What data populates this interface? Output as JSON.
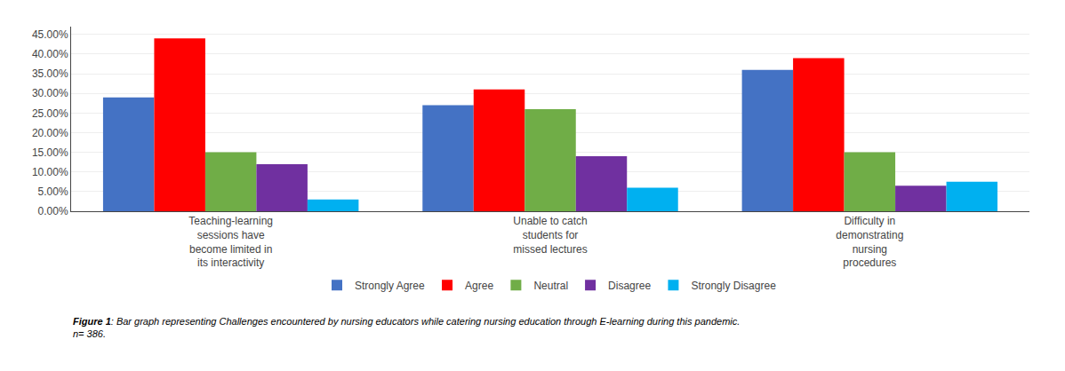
{
  "chart_data": {
    "type": "bar",
    "categories": [
      "Teaching-learning\nsessions have\nbecome limited in\nits interactivity",
      "Unable to catch\nstudents for\nmissed lectures",
      "Difficulty in\ndemonstrating\nnursing\nprocedures"
    ],
    "series": [
      {
        "name": "Strongly Agree",
        "color": "#4472C4",
        "values": [
          29.0,
          27.0,
          36.0
        ]
      },
      {
        "name": "Agree",
        "color": "#FF0000",
        "values": [
          44.0,
          31.0,
          39.0
        ]
      },
      {
        "name": "Neutral",
        "color": "#70AD47",
        "values": [
          15.0,
          26.0,
          15.0
        ]
      },
      {
        "name": "Disagree",
        "color": "#7030A0",
        "values": [
          12.0,
          14.0,
          6.5
        ]
      },
      {
        "name": "Strongly Disagree",
        "color": "#00B0F0",
        "values": [
          3.0,
          6.0,
          7.5
        ]
      }
    ],
    "ylim": [
      0,
      47
    ],
    "yticks": [
      {
        "value": 0,
        "label": "0.00%"
      },
      {
        "value": 5,
        "label": "5.00%"
      },
      {
        "value": 10,
        "label": "10.00%"
      },
      {
        "value": 15,
        "label": "15.00%"
      },
      {
        "value": 20,
        "label": "20.00%"
      },
      {
        "value": 25,
        "label": "25.00%"
      },
      {
        "value": 30,
        "label": "30.00%"
      },
      {
        "value": 35,
        "label": "35.00%"
      },
      {
        "value": 40,
        "label": "40.00%"
      },
      {
        "value": 45,
        "label": "45.00%"
      }
    ],
    "grid": true,
    "legend": "bottom",
    "annotations": [
      "Figure 1",
      ": Bar graph representing Challenges encountered by nursing educators while catering nursing education through E-learning during this pandemic.\nn= 386."
    ]
  }
}
